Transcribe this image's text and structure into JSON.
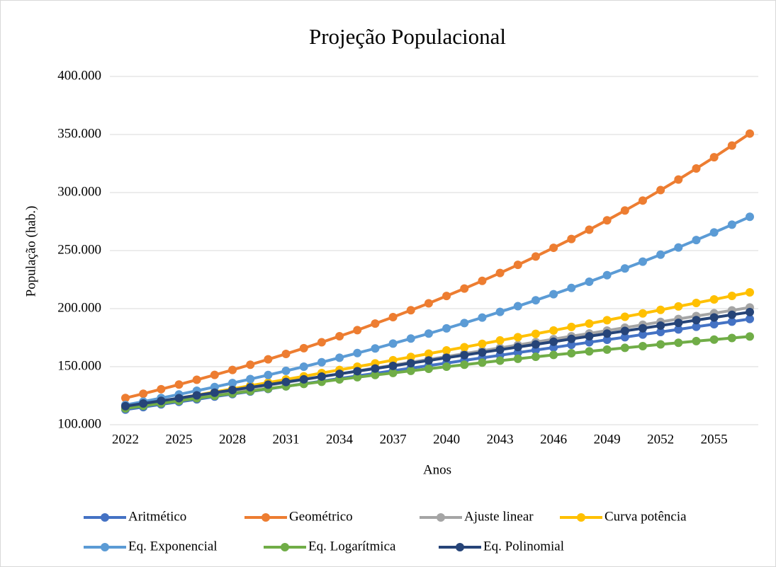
{
  "chart_data": {
    "type": "line",
    "title": "Projeção Populacional",
    "xlabel": "Anos",
    "ylabel": "População (hab.)",
    "x": [
      2022,
      2023,
      2024,
      2025,
      2026,
      2027,
      2028,
      2029,
      2030,
      2031,
      2032,
      2033,
      2034,
      2035,
      2036,
      2037,
      2038,
      2039,
      2040,
      2041,
      2042,
      2043,
      2044,
      2045,
      2046,
      2047,
      2048,
      2049,
      2050,
      2051,
      2052,
      2053,
      2054,
      2055,
      2056,
      2057
    ],
    "xlim": [
      2022,
      2057
    ],
    "xticks": [
      2022,
      2025,
      2028,
      2031,
      2034,
      2037,
      2040,
      2043,
      2046,
      2049,
      2052,
      2055
    ],
    "ylim": [
      100000,
      400000
    ],
    "yticks": [
      {
        "value": 100000,
        "label": "100.000"
      },
      {
        "value": 150000,
        "label": "150.000"
      },
      {
        "value": 200000,
        "label": "200.000"
      },
      {
        "value": 250000,
        "label": "250.000"
      },
      {
        "value": 300000,
        "label": "300.000"
      },
      {
        "value": 350000,
        "label": "350.000"
      },
      {
        "value": 400000,
        "label": "400.000"
      }
    ],
    "grid": true,
    "legend": "bottom",
    "series": [
      {
        "name": "Aritmético",
        "color": "#4472c4",
        "values": [
          113000,
          115200,
          117500,
          119700,
          121900,
          124200,
          126400,
          128600,
          130800,
          133100,
          135300,
          137500,
          139800,
          142000,
          144200,
          146500,
          148700,
          150900,
          153100,
          155400,
          157600,
          159800,
          162100,
          164300,
          166500,
          168800,
          171000,
          173200,
          175400,
          177700,
          179900,
          182100,
          184400,
          186600,
          188800,
          191100
        ]
      },
      {
        "name": "Geométrico",
        "color": "#ed7d31",
        "values": [
          123000,
          126700,
          130600,
          134600,
          138700,
          142900,
          147200,
          151700,
          156300,
          161000,
          165900,
          171000,
          176200,
          181500,
          187100,
          192700,
          198600,
          204600,
          210900,
          217300,
          223900,
          230700,
          237700,
          244900,
          252400,
          260000,
          268000,
          276100,
          284500,
          293100,
          302100,
          311200,
          320700,
          330400,
          340500,
          350800
        ]
      },
      {
        "name": "Ajuste linear",
        "color": "#a5a5a5",
        "values": [
          114000,
          116500,
          119000,
          121500,
          123900,
          126400,
          128900,
          131400,
          133900,
          136400,
          138900,
          141300,
          143800,
          146300,
          148800,
          151300,
          153800,
          156300,
          158700,
          161200,
          163700,
          166200,
          168700,
          171200,
          173700,
          176200,
          178600,
          181100,
          183600,
          186100,
          188600,
          191100,
          193600,
          196000,
          198500,
          201000
        ]
      },
      {
        "name": "Curva potência",
        "color": "#ffc000",
        "values": [
          115000,
          117600,
          120200,
          122900,
          125500,
          128200,
          130900,
          133600,
          136300,
          139000,
          141700,
          144500,
          147200,
          150000,
          152800,
          155600,
          158400,
          161200,
          164000,
          166800,
          169700,
          172600,
          175400,
          178300,
          181200,
          184200,
          187100,
          190000,
          193000,
          195900,
          198900,
          201900,
          204900,
          207900,
          211000,
          214000
        ]
      },
      {
        "name": "Eq. Exponencial",
        "color": "#5b9bd5",
        "values": [
          117000,
          119900,
          123000,
          126100,
          129300,
          132500,
          135900,
          139300,
          142800,
          146400,
          150000,
          153800,
          157700,
          161700,
          165700,
          169900,
          174200,
          178500,
          183000,
          187600,
          192300,
          197200,
          202100,
          207200,
          212400,
          217800,
          223200,
          228800,
          234600,
          240500,
          246500,
          252700,
          259100,
          265600,
          272300,
          279100
        ]
      },
      {
        "name": "Eq. Logarítmica",
        "color": "#70ad47",
        "values": [
          114000,
          116200,
          118400,
          120600,
          122800,
          124900,
          127000,
          129000,
          131100,
          133100,
          135100,
          137000,
          139000,
          140900,
          142800,
          144600,
          146400,
          148200,
          150000,
          151700,
          153500,
          155200,
          156800,
          158500,
          160100,
          161600,
          163200,
          164700,
          166200,
          167700,
          169200,
          170600,
          172000,
          173300,
          174700,
          176000
        ]
      },
      {
        "name": "Eq. Polinomial",
        "color": "#264478",
        "values": [
          116000,
          118300,
          120600,
          122900,
          125300,
          127600,
          129900,
          132200,
          134500,
          136800,
          139100,
          141500,
          143800,
          146100,
          148400,
          150700,
          153000,
          155300,
          157700,
          160000,
          162300,
          164600,
          166900,
          169200,
          171500,
          173900,
          176200,
          178500,
          180800,
          183100,
          185400,
          187700,
          190100,
          192400,
          194700,
          197000
        ]
      }
    ]
  }
}
